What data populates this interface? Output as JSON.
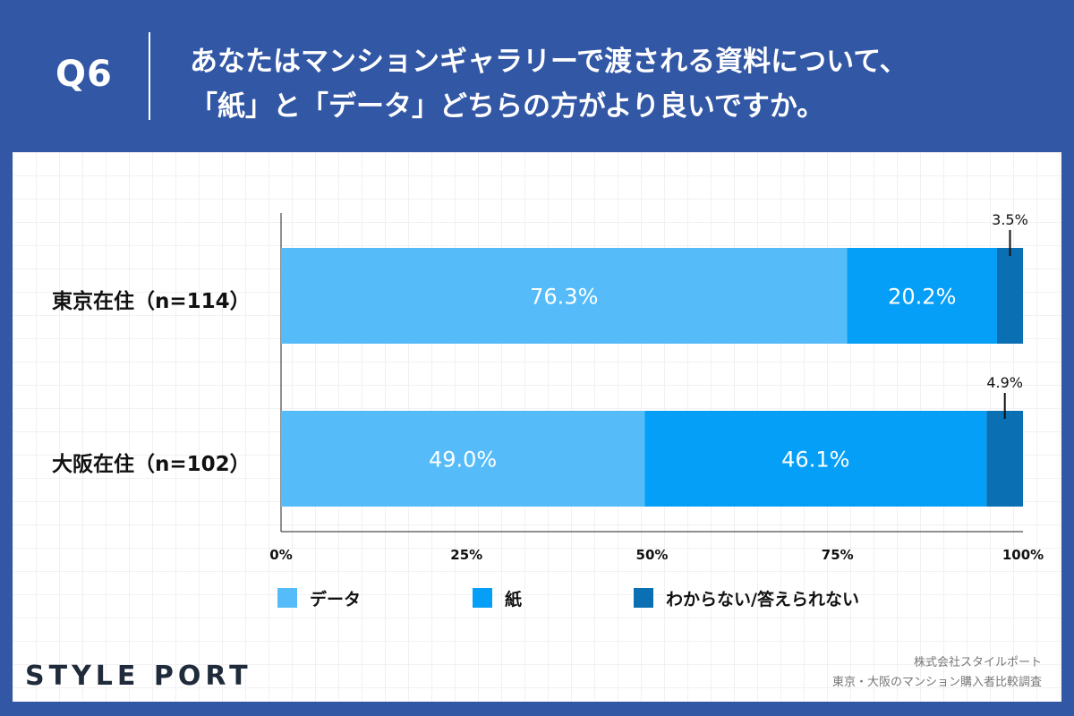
{
  "header": {
    "question_number": "Q6",
    "question_line1": "あなたはマンションギャラリーで渡される資料について、",
    "question_line2": "「紙」と「データ」どちらの方がより良いですか。"
  },
  "chart_data": {
    "type": "bar",
    "orientation": "horizontal",
    "stacked": true,
    "title": "あなたはマンションギャラリーで渡される資料について、「紙」と「データ」どちらの方がより良いですか。",
    "categories": [
      "東京在住（n=114）",
      "大阪在住（n=102）"
    ],
    "series": [
      {
        "name": "データ",
        "color": "#55bcf9",
        "values": [
          76.3,
          49.0
        ],
        "labels": [
          "76.3%",
          "49.0%"
        ]
      },
      {
        "name": "紙",
        "color": "#069ff7",
        "values": [
          20.2,
          46.1
        ],
        "labels": [
          "20.2%",
          "46.1%"
        ]
      },
      {
        "name": "わからない/答えられない",
        "color": "#0b6fb4",
        "values": [
          3.5,
          4.9
        ],
        "labels": [
          "3.5%",
          "4.9%"
        ]
      }
    ],
    "xlim": [
      0,
      100
    ],
    "xticks": [
      "0%",
      "25%",
      "50%",
      "75%",
      "100%"
    ],
    "legend_position": "bottom"
  },
  "footer": {
    "logo": "STYLE PORT",
    "source_line1": "株式会社スタイルポート",
    "source_line2": "東京・大阪のマンション購入者比較調査"
  }
}
